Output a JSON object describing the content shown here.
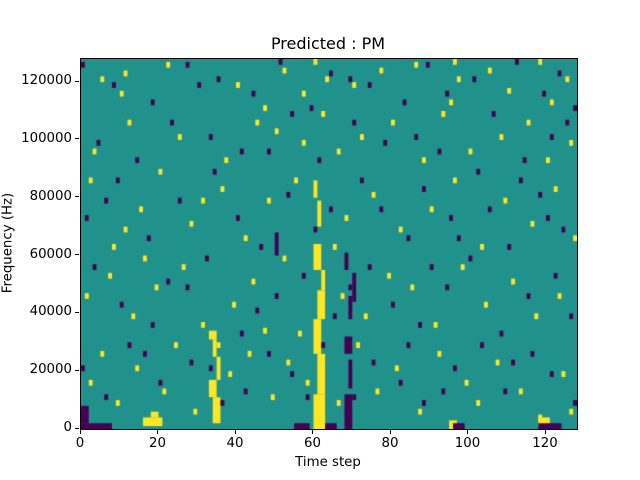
{
  "figure": {
    "title": "Predicted : PM",
    "xlabel": "Time step",
    "ylabel": "Frequency (Hz)"
  },
  "chart_data": {
    "type": "heatmap",
    "title": "Predicted : PM",
    "xlabel": "Time step",
    "ylabel": "Frequency (Hz)",
    "xlim": [
      0,
      128
    ],
    "ylim": [
      0,
      128000
    ],
    "xticks": [
      0,
      20,
      40,
      60,
      80,
      100,
      120
    ],
    "yticks": [
      0,
      20000,
      40000,
      60000,
      80000,
      100000,
      120000
    ],
    "grid": false,
    "legend": "none",
    "colors": {
      "background_mid": "#21918c",
      "high_yellow": "#fde725",
      "low_purple": "#440154",
      "axis": "#000000"
    },
    "units": {
      "t": "time step, 0-128",
      "f": "kHz bin, 0-128 maps to 0-128000 Hz"
    },
    "cell_size": {
      "w": 1,
      "h": 2
    },
    "yellow_rects": [
      [
        60,
        0,
        3,
        12
      ],
      [
        61,
        12,
        2,
        14
      ],
      [
        60,
        26,
        2,
        12
      ],
      [
        61,
        38,
        2,
        10
      ],
      [
        62,
        48,
        1,
        7
      ],
      [
        60,
        55,
        2,
        9
      ],
      [
        61,
        70,
        1,
        9
      ],
      [
        60,
        80,
        1,
        6
      ],
      [
        34,
        2,
        2,
        9
      ],
      [
        33,
        11,
        2,
        6
      ],
      [
        35,
        17,
        1,
        8
      ],
      [
        34,
        25,
        1,
        6
      ],
      [
        33,
        31,
        2,
        3
      ],
      [
        16,
        1,
        5,
        3
      ],
      [
        18,
        4,
        2,
        2
      ],
      [
        118,
        1,
        3,
        3
      ],
      [
        95,
        0,
        2,
        3
      ]
    ],
    "purple_rects": [
      [
        68,
        0,
        2,
        12
      ],
      [
        69,
        14,
        1,
        10
      ],
      [
        68,
        26,
        2,
        6
      ],
      [
        69,
        38,
        1,
        8
      ],
      [
        68,
        55,
        1,
        6
      ],
      [
        70,
        44,
        1,
        10
      ],
      [
        0,
        0,
        8,
        2
      ],
      [
        0,
        2,
        2,
        6
      ],
      [
        55,
        0,
        4,
        2
      ],
      [
        63,
        0,
        3,
        2
      ],
      [
        118,
        0,
        6,
        2
      ],
      [
        96,
        0,
        3,
        2
      ],
      [
        50,
        60,
        1,
        8
      ]
    ],
    "yellow_cells": [
      [
        5,
        120
      ],
      [
        10,
        115
      ],
      [
        11,
        122
      ],
      [
        22,
        125
      ],
      [
        40,
        118
      ],
      [
        47,
        110
      ],
      [
        52,
        123
      ],
      [
        57,
        115
      ],
      [
        60,
        126
      ],
      [
        63,
        120
      ],
      [
        70,
        118
      ],
      [
        77,
        123
      ],
      [
        86,
        125
      ],
      [
        95,
        112
      ],
      [
        96,
        126
      ],
      [
        97,
        120
      ],
      [
        105,
        123
      ],
      [
        110,
        116
      ],
      [
        118,
        126
      ],
      [
        121,
        112
      ],
      [
        125,
        120
      ],
      [
        3,
        95
      ],
      [
        12,
        105
      ],
      [
        25,
        100
      ],
      [
        37,
        92
      ],
      [
        45,
        105
      ],
      [
        50,
        102
      ],
      [
        57,
        98
      ],
      [
        62,
        108
      ],
      [
        66,
        95
      ],
      [
        72,
        100
      ],
      [
        80,
        105
      ],
      [
        88,
        92
      ],
      [
        93,
        108
      ],
      [
        100,
        95
      ],
      [
        108,
        100
      ],
      [
        115,
        105
      ],
      [
        120,
        92
      ],
      [
        126,
        98
      ],
      [
        2,
        85
      ],
      [
        8,
        62
      ],
      [
        11,
        68
      ],
      [
        15,
        75
      ],
      [
        20,
        88
      ],
      [
        28,
        70
      ],
      [
        31,
        78
      ],
      [
        36,
        82
      ],
      [
        42,
        65
      ],
      [
        48,
        78
      ],
      [
        55,
        85
      ],
      [
        65,
        62
      ],
      [
        68,
        72
      ],
      [
        75,
        80
      ],
      [
        82,
        68
      ],
      [
        90,
        75
      ],
      [
        96,
        85
      ],
      [
        103,
        62
      ],
      [
        109,
        78
      ],
      [
        116,
        70
      ],
      [
        122,
        82
      ],
      [
        127,
        65
      ],
      [
        1,
        45
      ],
      [
        7,
        52
      ],
      [
        13,
        38
      ],
      [
        16,
        58
      ],
      [
        19,
        48
      ],
      [
        26,
        55
      ],
      [
        31,
        35
      ],
      [
        39,
        42
      ],
      [
        44,
        50
      ],
      [
        47,
        33
      ],
      [
        52,
        58
      ],
      [
        56,
        32
      ],
      [
        67,
        45
      ],
      [
        73,
        38
      ],
      [
        79,
        52
      ],
      [
        85,
        48
      ],
      [
        91,
        35
      ],
      [
        98,
        55
      ],
      [
        104,
        42
      ],
      [
        111,
        50
      ],
      [
        117,
        38
      ],
      [
        123,
        45
      ],
      [
        2,
        15
      ],
      [
        5,
        25
      ],
      [
        9,
        8
      ],
      [
        14,
        20
      ],
      [
        21,
        12
      ],
      [
        24,
        28
      ],
      [
        29,
        5
      ],
      [
        35,
        28
      ],
      [
        38,
        18
      ],
      [
        43,
        25
      ],
      [
        49,
        10
      ],
      [
        53,
        22
      ],
      [
        58,
        15
      ],
      [
        66,
        8
      ],
      [
        71,
        28
      ],
      [
        76,
        12
      ],
      [
        81,
        20
      ],
      [
        87,
        5
      ],
      [
        92,
        25
      ],
      [
        99,
        15
      ],
      [
        102,
        8
      ],
      [
        107,
        22
      ],
      [
        113,
        12
      ],
      [
        118,
        3
      ],
      [
        124,
        18
      ],
      [
        126,
        5
      ]
    ],
    "purple_cells": [
      [
        0,
        125
      ],
      [
        8,
        118
      ],
      [
        18,
        112
      ],
      [
        27,
        125
      ],
      [
        30,
        118
      ],
      [
        35,
        120
      ],
      [
        44,
        115
      ],
      [
        51,
        126
      ],
      [
        59,
        110
      ],
      [
        64,
        122
      ],
      [
        69,
        120
      ],
      [
        74,
        118
      ],
      [
        83,
        112
      ],
      [
        89,
        125
      ],
      [
        94,
        115
      ],
      [
        101,
        120
      ],
      [
        112,
        126
      ],
      [
        119,
        115
      ],
      [
        123,
        122
      ],
      [
        127,
        110
      ],
      [
        4,
        98
      ],
      [
        14,
        92
      ],
      [
        23,
        105
      ],
      [
        33,
        100
      ],
      [
        41,
        95
      ],
      [
        48,
        95
      ],
      [
        54,
        108
      ],
      [
        61,
        92
      ],
      [
        70,
        105
      ],
      [
        78,
        98
      ],
      [
        86,
        100
      ],
      [
        92,
        95
      ],
      [
        106,
        108
      ],
      [
        114,
        92
      ],
      [
        121,
        100
      ],
      [
        125,
        105
      ],
      [
        1,
        72
      ],
      [
        6,
        78
      ],
      [
        9,
        85
      ],
      [
        17,
        65
      ],
      [
        25,
        78
      ],
      [
        34,
        88
      ],
      [
        40,
        72
      ],
      [
        46,
        62
      ],
      [
        53,
        80
      ],
      [
        60,
        68
      ],
      [
        64,
        75
      ],
      [
        72,
        85
      ],
      [
        77,
        75
      ],
      [
        84,
        65
      ],
      [
        88,
        82
      ],
      [
        95,
        72
      ],
      [
        97,
        65
      ],
      [
        102,
        88
      ],
      [
        105,
        75
      ],
      [
        110,
        62
      ],
      [
        113,
        85
      ],
      [
        118,
        80
      ],
      [
        120,
        72
      ],
      [
        124,
        68
      ],
      [
        3,
        55
      ],
      [
        10,
        42
      ],
      [
        18,
        35
      ],
      [
        22,
        50
      ],
      [
        27,
        48
      ],
      [
        32,
        58
      ],
      [
        41,
        32
      ],
      [
        45,
        40
      ],
      [
        50,
        45
      ],
      [
        57,
        52
      ],
      [
        65,
        38
      ],
      [
        69,
        48
      ],
      [
        74,
        55
      ],
      [
        80,
        42
      ],
      [
        87,
        35
      ],
      [
        90,
        55
      ],
      [
        94,
        48
      ],
      [
        100,
        58
      ],
      [
        108,
        32
      ],
      [
        115,
        45
      ],
      [
        122,
        52
      ],
      [
        126,
        38
      ],
      [
        0,
        20
      ],
      [
        6,
        10
      ],
      [
        12,
        28
      ],
      [
        16,
        25
      ],
      [
        20,
        15
      ],
      [
        28,
        22
      ],
      [
        33,
        20
      ],
      [
        36,
        8
      ],
      [
        42,
        12
      ],
      [
        48,
        25
      ],
      [
        54,
        18
      ],
      [
        58,
        10
      ],
      [
        62,
        28
      ],
      [
        70,
        10
      ],
      [
        75,
        22
      ],
      [
        82,
        15
      ],
      [
        84,
        28
      ],
      [
        88,
        8
      ],
      [
        93,
        12
      ],
      [
        96,
        20
      ],
      [
        103,
        28
      ],
      [
        109,
        12
      ],
      [
        111,
        22
      ],
      [
        116,
        25
      ],
      [
        121,
        18
      ],
      [
        127,
        8
      ]
    ]
  }
}
